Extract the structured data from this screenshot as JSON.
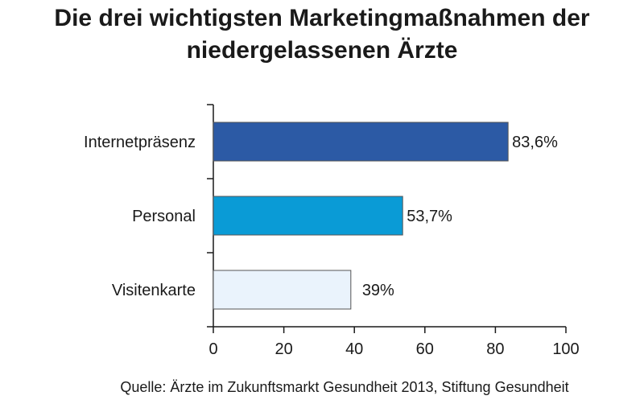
{
  "chart_data": {
    "type": "bar",
    "orientation": "horizontal",
    "title": [
      "Die drei wichtigsten Marketingmaßnahmen der",
      "niedergelassenen Ärzte"
    ],
    "categories": [
      "Internetpräsenz",
      "Personal",
      "Visitenkarte"
    ],
    "values": [
      83.6,
      53.7,
      39
    ],
    "value_labels": [
      "83,6%",
      "53,7%",
      "39%"
    ],
    "bar_colors": [
      "#2c5aa5",
      "#0a9bd6",
      "#eaf3fc"
    ],
    "bar_stroke": "#555555",
    "xlim": [
      0,
      100
    ],
    "xticks": [
      0,
      20,
      40,
      60,
      80,
      100
    ],
    "grid": false,
    "source": "Quelle:  Ärzte im Zukunftsmarkt Gesundheit 2013, Stiftung Gesundheit"
  }
}
